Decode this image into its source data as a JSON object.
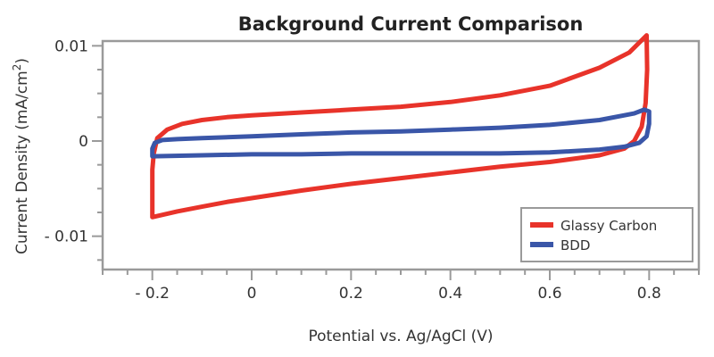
{
  "chart_data": {
    "type": "line",
    "title": "Background Current Comparison",
    "xlabel": "Potential vs. Ag/AgCl (V)",
    "ylabel_main": "Current Density (mA/cm",
    "ylabel_sup": "2",
    "ylabel_end": ")",
    "xlim": [
      -0.3,
      0.9
    ],
    "ylim": [
      -0.0135,
      0.0105
    ],
    "xticks": [
      {
        "value": -0.2,
        "label": "- 0.2"
      },
      {
        "value": 0,
        "label": "0"
      },
      {
        "value": 0.2,
        "label": "0.2"
      },
      {
        "value": 0.4,
        "label": "0.4"
      },
      {
        "value": 0.6,
        "label": "0.6"
      },
      {
        "value": 0.8,
        "label": "0.8"
      }
    ],
    "yticks": [
      {
        "value": 0.01,
        "label": "0.01"
      },
      {
        "value": 0,
        "label": "0"
      },
      {
        "value": -0.01,
        "label": "- 0.01"
      }
    ],
    "legend_position": "bottom-right",
    "series": [
      {
        "name": "Glassy Carbon",
        "color": "#e8332a",
        "points": [
          [
            -0.2,
            -0.008
          ],
          [
            -0.2,
            -0.0055
          ],
          [
            -0.2,
            -0.003
          ],
          [
            -0.197,
            -0.0013
          ],
          [
            -0.19,
            0.0003
          ],
          [
            -0.17,
            0.0012
          ],
          [
            -0.14,
            0.0018
          ],
          [
            -0.1,
            0.0022
          ],
          [
            -0.05,
            0.0025
          ],
          [
            0.0,
            0.0027
          ],
          [
            0.1,
            0.003
          ],
          [
            0.2,
            0.0033
          ],
          [
            0.3,
            0.0036
          ],
          [
            0.4,
            0.0041
          ],
          [
            0.5,
            0.0048
          ],
          [
            0.6,
            0.0058
          ],
          [
            0.7,
            0.0077
          ],
          [
            0.76,
            0.0093
          ],
          [
            0.795,
            0.0111
          ],
          [
            0.796,
            0.0075
          ],
          [
            0.793,
            0.004
          ],
          [
            0.785,
            0.0015
          ],
          [
            0.77,
            0.0
          ],
          [
            0.75,
            -0.0008
          ],
          [
            0.7,
            -0.0015
          ],
          [
            0.6,
            -0.0022
          ],
          [
            0.5,
            -0.0027
          ],
          [
            0.4,
            -0.0033
          ],
          [
            0.3,
            -0.0039
          ],
          [
            0.2,
            -0.0045
          ],
          [
            0.1,
            -0.0052
          ],
          [
            0.0,
            -0.006
          ],
          [
            -0.05,
            -0.0064
          ],
          [
            -0.1,
            -0.0069
          ],
          [
            -0.15,
            -0.0074
          ],
          [
            -0.2,
            -0.008
          ]
        ]
      },
      {
        "name": "BDD",
        "color": "#3a56a8",
        "points": [
          [
            -0.2,
            -0.0016
          ],
          [
            -0.2,
            -0.0008
          ],
          [
            -0.195,
            -0.0002
          ],
          [
            -0.18,
            0.0001
          ],
          [
            -0.15,
            0.0002
          ],
          [
            -0.1,
            0.0003
          ],
          [
            0.0,
            0.0005
          ],
          [
            0.1,
            0.0007
          ],
          [
            0.2,
            0.0009
          ],
          [
            0.3,
            0.001
          ],
          [
            0.4,
            0.0012
          ],
          [
            0.5,
            0.0014
          ],
          [
            0.6,
            0.0017
          ],
          [
            0.7,
            0.0022
          ],
          [
            0.77,
            0.0029
          ],
          [
            0.79,
            0.0033
          ],
          [
            0.8,
            0.0031
          ],
          [
            0.8,
            0.0018
          ],
          [
            0.795,
            0.0005
          ],
          [
            0.78,
            -0.0002
          ],
          [
            0.75,
            -0.0006
          ],
          [
            0.7,
            -0.0009
          ],
          [
            0.6,
            -0.0012
          ],
          [
            0.5,
            -0.0013
          ],
          [
            0.4,
            -0.0013
          ],
          [
            0.3,
            -0.0013
          ],
          [
            0.2,
            -0.0013
          ],
          [
            0.1,
            -0.0014
          ],
          [
            0.0,
            -0.0014
          ],
          [
            -0.1,
            -0.0015
          ],
          [
            -0.2,
            -0.0016
          ]
        ]
      }
    ]
  }
}
